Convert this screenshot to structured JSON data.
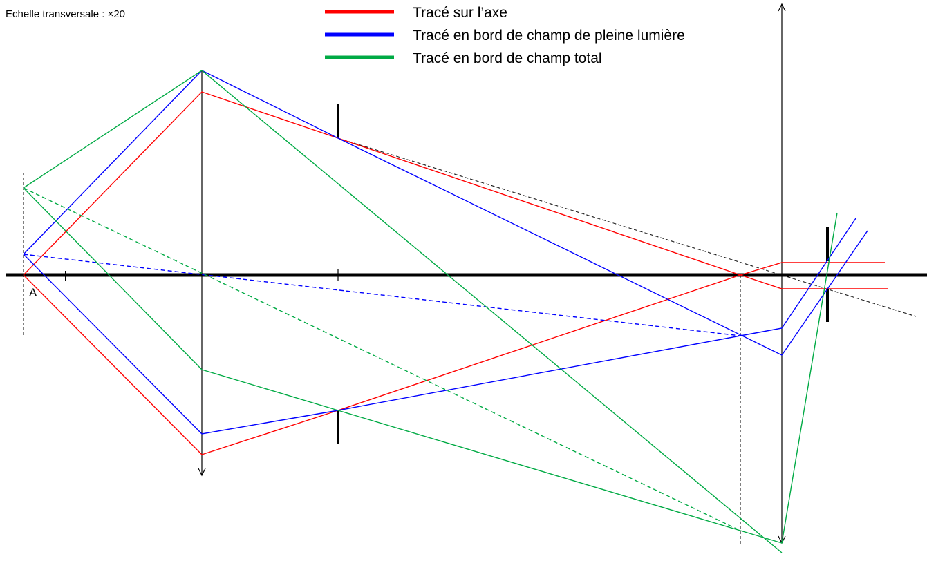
{
  "scale_note": "Echelle transversale  : ×20",
  "point_label": "A",
  "legend": [
    {
      "label": "Tracé sur l’axe",
      "color": "#ff0000"
    },
    {
      "label": "Tracé en bord de champ de pleine lumière",
      "color": "#0000ff"
    },
    {
      "label": "Tracé en bord de champ total",
      "color": "#00aa44"
    }
  ],
  "colors": {
    "axis": "#000000",
    "red": "#ff0000",
    "blue": "#0000ff",
    "green": "#00aa44",
    "construction": "#000000"
  }
}
